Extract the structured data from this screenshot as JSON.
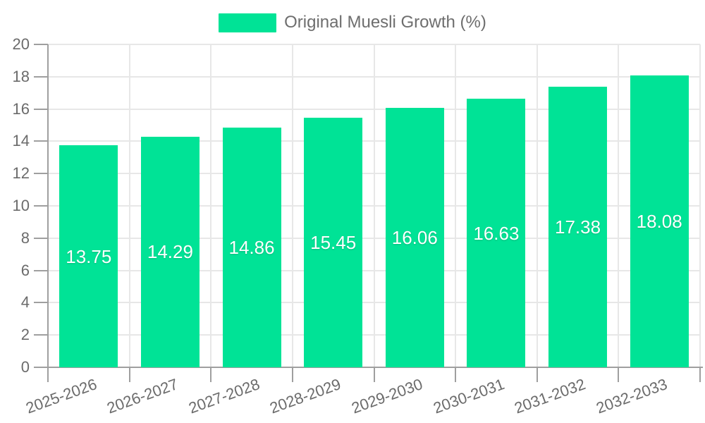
{
  "chart_data": {
    "type": "bar",
    "title": "Original Muesli Growth (%)",
    "categories": [
      "2025-2026",
      "2026-2027",
      "2027-2028",
      "2028-2029",
      "2029-2030",
      "2030-2031",
      "2031-2032",
      "2032-2033"
    ],
    "series": [
      {
        "name": "Original Muesli Growth (%)",
        "values": [
          13.75,
          14.29,
          14.86,
          15.45,
          16.06,
          16.63,
          17.38,
          18.08
        ]
      }
    ],
    "value_labels": [
      "13.75",
      "14.29",
      "14.86",
      "15.45",
      "16.06",
      "16.63",
      "17.38",
      "18.08"
    ],
    "xlabel": "",
    "ylabel": "",
    "ylim": [
      0,
      20
    ],
    "yticks": [
      0,
      2,
      4,
      6,
      8,
      10,
      12,
      14,
      16,
      18,
      20
    ],
    "ytick_labels": [
      "0",
      "2",
      "4",
      "6",
      "8",
      "10",
      "12",
      "14",
      "16",
      "18",
      "20"
    ],
    "grid": true,
    "legend_position": "top-center",
    "x_label_rotation_deg": -20,
    "colors": {
      "bar": "#00E396",
      "bar_label": "#ffffff",
      "axis_text": "#6b6b6b",
      "axis_line": "#9f9f9f",
      "grid_line": "#e7e7e7",
      "background": "#ffffff"
    }
  }
}
